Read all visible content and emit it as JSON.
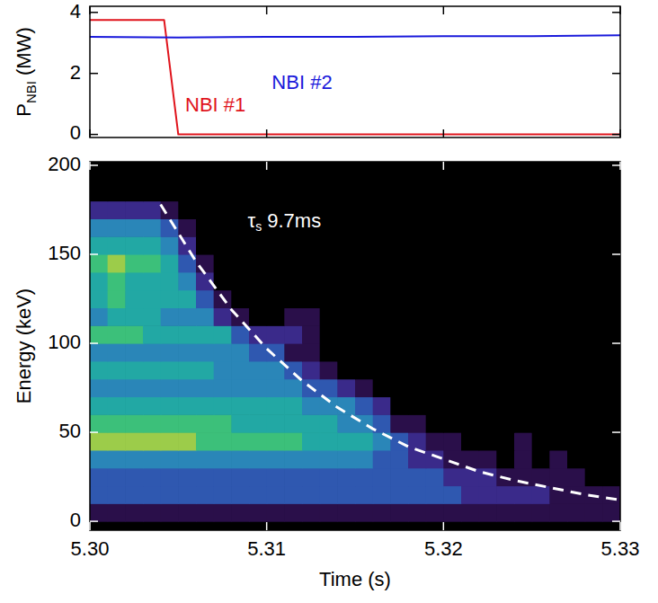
{
  "chart_data": [
    {
      "type": "line",
      "ylabel": {
        "base": "P",
        "sub": "NBI",
        "rest": " (MW)"
      },
      "xlim": [
        5.3,
        5.33
      ],
      "xticks": [
        {
          "value": 5.3,
          "label": "5.30"
        },
        {
          "value": 5.31,
          "label": "5.31"
        },
        {
          "value": 5.32,
          "label": "5.32"
        },
        {
          "value": 5.33,
          "label": "5.33"
        }
      ],
      "ylim": [
        -0.1,
        4.2
      ],
      "yticks": [
        0,
        2,
        4
      ],
      "tick_labels": "y",
      "series": [
        {
          "name": "NBI #1",
          "color": "#e0141c",
          "x": [
            5.3,
            5.3042,
            5.305,
            5.33
          ],
          "values": [
            3.75,
            3.75,
            0,
            0
          ],
          "label_at": [
            5.3071,
            0.93
          ]
        },
        {
          "name": "NBI #2",
          "color": "#1a1adb",
          "x": [
            5.3,
            5.305,
            5.31,
            5.315,
            5.32,
            5.325,
            5.33
          ],
          "values": [
            3.2,
            3.18,
            3.2,
            3.2,
            3.22,
            3.22,
            3.25
          ],
          "label_at": [
            5.312,
            1.65
          ]
        }
      ]
    },
    {
      "type": "heatmap",
      "xlabel": "Time (s)",
      "ylabel": "Energy (keV)",
      "xlim": [
        5.3,
        5.33
      ],
      "xticks": [
        {
          "value": 5.3,
          "label": "5.30"
        },
        {
          "value": 5.31,
          "label": "5.31"
        },
        {
          "value": 5.32,
          "label": "5.32"
        },
        {
          "value": 5.33,
          "label": "5.33"
        }
      ],
      "ylim": [
        -5,
        202
      ],
      "yticks": [
        0,
        50,
        100,
        150,
        200
      ],
      "zlim": [
        0,
        9
      ],
      "xbins": [
        5.3,
        5.301,
        5.302,
        5.303,
        5.304,
        5.305,
        5.306,
        5.307,
        5.308,
        5.309,
        5.31,
        5.311,
        5.312,
        5.313,
        5.314,
        5.315,
        5.316,
        5.317,
        5.318,
        5.319,
        5.32,
        5.321,
        5.322,
        5.323,
        5.324,
        5.325,
        5.326,
        5.327,
        5.328,
        5.329,
        5.33
      ],
      "ybins": [
        0,
        10,
        20,
        30,
        40,
        50,
        60,
        70,
        80,
        90,
        100,
        110,
        120,
        130,
        140,
        150,
        160,
        170,
        180,
        190,
        200
      ],
      "cells": [
        [
          1,
          1,
          1,
          1,
          1,
          1,
          1,
          1,
          1,
          1,
          1,
          1,
          1,
          1,
          1,
          1,
          1,
          1,
          1,
          1,
          1,
          1,
          1,
          1,
          1,
          1,
          1,
          1,
          1,
          1
        ],
        [
          3,
          3,
          3,
          3,
          3,
          3,
          3,
          3,
          3,
          3,
          3,
          3,
          3,
          3,
          3,
          3,
          3,
          3,
          3,
          3,
          3,
          2,
          2,
          2,
          2,
          2,
          1,
          1,
          1,
          1
        ],
        [
          3,
          3,
          3,
          3,
          3,
          3,
          3,
          3,
          3,
          3,
          3,
          3,
          3,
          3,
          3,
          3,
          3,
          3,
          3,
          3,
          2,
          2,
          2,
          1,
          1,
          1,
          1,
          1,
          0,
          0
        ],
        [
          4,
          4,
          4,
          4,
          4,
          4,
          4,
          4,
          4,
          4,
          4,
          4,
          4,
          4,
          4,
          4,
          3,
          3,
          2,
          2,
          1,
          1,
          1,
          0,
          1,
          0,
          1,
          0,
          0,
          0
        ],
        [
          7,
          7,
          7,
          7,
          7,
          7,
          6,
          6,
          6,
          6,
          6,
          6,
          5,
          5,
          5,
          5,
          4,
          3,
          2,
          1,
          1,
          0,
          0,
          0,
          1,
          0,
          0,
          0,
          0,
          0
        ],
        [
          6,
          6,
          6,
          6,
          6,
          6,
          6,
          6,
          5,
          5,
          5,
          5,
          5,
          5,
          4,
          4,
          3,
          1,
          1,
          0,
          0,
          0,
          0,
          0,
          0,
          0,
          0,
          0,
          0,
          0
        ],
        [
          5,
          5,
          5,
          5,
          5,
          5,
          5,
          5,
          5,
          5,
          5,
          5,
          4,
          4,
          4,
          3,
          2,
          0,
          0,
          0,
          0,
          0,
          0,
          0,
          0,
          0,
          0,
          0,
          0,
          0
        ],
        [
          4,
          4,
          4,
          4,
          4,
          4,
          4,
          4,
          4,
          4,
          4,
          4,
          3,
          3,
          2,
          1,
          0,
          0,
          0,
          0,
          0,
          0,
          0,
          0,
          0,
          0,
          0,
          0,
          0,
          0
        ],
        [
          5,
          5,
          5,
          5,
          5,
          5,
          5,
          4,
          4,
          4,
          4,
          3,
          2,
          1,
          0,
          0,
          0,
          0,
          0,
          0,
          0,
          0,
          0,
          0,
          0,
          0,
          0,
          0,
          0,
          0
        ],
        [
          4,
          4,
          4,
          4,
          4,
          4,
          4,
          4,
          4,
          3,
          3,
          1,
          1,
          0,
          0,
          0,
          0,
          0,
          0,
          0,
          0,
          0,
          0,
          0,
          0,
          0,
          0,
          0,
          0,
          0
        ],
        [
          6,
          6,
          6,
          5,
          5,
          5,
          5,
          5,
          3,
          2,
          2,
          2,
          1,
          0,
          0,
          0,
          0,
          0,
          0,
          0,
          0,
          0,
          0,
          0,
          0,
          0,
          0,
          0,
          0,
          0
        ],
        [
          4,
          5,
          5,
          5,
          4,
          4,
          4,
          2,
          1,
          0,
          0,
          1,
          1,
          0,
          0,
          0,
          0,
          0,
          0,
          0,
          0,
          0,
          0,
          0,
          0,
          0,
          0,
          0,
          0,
          0
        ],
        [
          5,
          6,
          5,
          5,
          5,
          5,
          3,
          1,
          0,
          0,
          0,
          0,
          0,
          0,
          0,
          0,
          0,
          0,
          0,
          0,
          0,
          0,
          0,
          0,
          0,
          0,
          0,
          0,
          0,
          0
        ],
        [
          5,
          6,
          5,
          5,
          5,
          4,
          2,
          0,
          0,
          0,
          0,
          0,
          0,
          0,
          0,
          0,
          0,
          0,
          0,
          0,
          0,
          0,
          0,
          0,
          0,
          0,
          0,
          0,
          0,
          0
        ],
        [
          6,
          7,
          6,
          6,
          5,
          3,
          1,
          0,
          0,
          0,
          0,
          0,
          0,
          0,
          0,
          0,
          0,
          0,
          0,
          0,
          0,
          0,
          0,
          0,
          0,
          0,
          0,
          0,
          0,
          0
        ],
        [
          5,
          5,
          5,
          5,
          4,
          2,
          0,
          0,
          0,
          0,
          0,
          0,
          0,
          0,
          0,
          0,
          0,
          0,
          0,
          0,
          0,
          0,
          0,
          0,
          0,
          0,
          0,
          0,
          0,
          0
        ],
        [
          4,
          4,
          4,
          4,
          3,
          1,
          0,
          0,
          0,
          0,
          0,
          0,
          0,
          0,
          0,
          0,
          0,
          0,
          0,
          0,
          0,
          0,
          0,
          0,
          0,
          0,
          0,
          0,
          0,
          0
        ],
        [
          2,
          2,
          2,
          2,
          1,
          0,
          0,
          0,
          0,
          0,
          0,
          0,
          0,
          0,
          0,
          0,
          0,
          0,
          0,
          0,
          0,
          0,
          0,
          0,
          0,
          0,
          0,
          0,
          0,
          0
        ],
        [
          0,
          0,
          0,
          0,
          0,
          0,
          0,
          0,
          0,
          0,
          0,
          0,
          0,
          0,
          0,
          0,
          0,
          0,
          0,
          0,
          0,
          0,
          0,
          0,
          0,
          0,
          0,
          0,
          0,
          0
        ],
        [
          0,
          0,
          0,
          0,
          0,
          0,
          0,
          0,
          0,
          0,
          0,
          0,
          0,
          0,
          0,
          0,
          0,
          0,
          0,
          0,
          0,
          0,
          0,
          0,
          0,
          0,
          0,
          0,
          0,
          0
        ]
      ],
      "series": [
        {
          "color": "#ffffff",
          "line_style": "dashed",
          "x": [
            5.304,
            5.306,
            5.308,
            5.31,
            5.312,
            5.314,
            5.316,
            5.318,
            5.32,
            5.322,
            5.324,
            5.326,
            5.328,
            5.33
          ],
          "values": [
            178,
            146,
            119,
            97,
            79,
            64,
            52,
            42,
            35,
            28,
            23,
            19,
            15,
            12
          ]
        }
      ],
      "annotations": [
        {
          "text": "τ",
          "sub": "s",
          "rest": " 9.7ms",
          "x": 5.311,
          "y": 168
        }
      ]
    }
  ]
}
